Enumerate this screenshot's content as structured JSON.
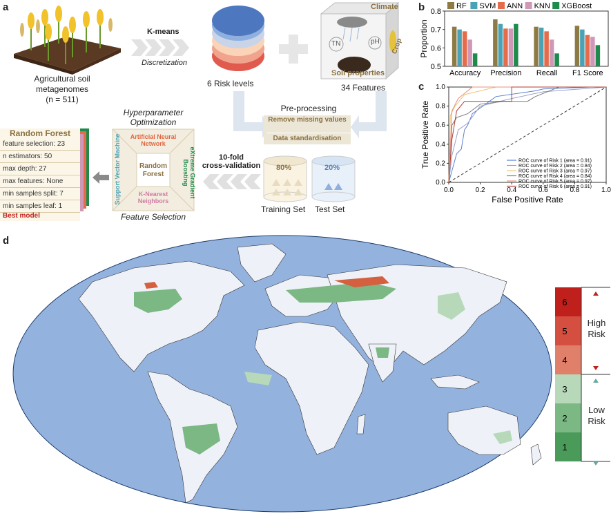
{
  "panels": {
    "a": "a",
    "b": "b",
    "c": "c",
    "d": "d"
  },
  "panel_a": {
    "soil_title": "Agricultural soil metagenomes",
    "soil_n": "(n = 511)",
    "kmeans": "K-means",
    "discretization": "Discretization",
    "risk_levels": "6 Risk levels",
    "cube_climate": "Climate",
    "cube_tn": "TN",
    "cube_ph": "pH",
    "cube_crop": "Crop",
    "cube_soil": "Soil properties",
    "features": "34 Features",
    "preprocessing": "Pre-processing",
    "remove_missing": "Remove missing values",
    "standardisation": "Data standardisation",
    "train_pct": "80%",
    "test_pct": "20%",
    "training_set": "Training Set",
    "test_set": "Test Set",
    "cv_line1": "10-fold",
    "cv_line2": "cross-validation",
    "hyper_line1": "Hyperparameter",
    "hyper_line2": "Optimization",
    "feature_selection": "Feature Selection",
    "frame_top": "Artificial Neural Network",
    "frame_left": "Support Vector Machine",
    "frame_right": "eXtreme Gradient Boosting",
    "frame_bottom": "K-Nearest Neighbors",
    "frame_center": "Random Forest",
    "rf_title": "Random Forest",
    "rf_params": [
      "feature selection: 23",
      "n estimators: 50",
      "max depth: 27",
      "max features: None",
      "min samples split: 7",
      "min samples leaf: 1"
    ],
    "best_model": "Best model"
  },
  "chart_data": [
    {
      "id": "b",
      "type": "bar",
      "ylabel": "Proportion",
      "ylim": [
        0.5,
        0.8
      ],
      "yticks": [
        "0.5",
        "0.6",
        "0.7",
        "0.8"
      ],
      "categories": [
        "Accuracy",
        "Precision",
        "Recall",
        "F1 Score"
      ],
      "series": [
        {
          "name": "RF",
          "color": "#8e7a45",
          "values": [
            0.715,
            0.755,
            0.715,
            0.72
          ]
        },
        {
          "name": "SVM",
          "color": "#4aa3b5",
          "values": [
            0.7,
            0.73,
            0.71,
            0.7
          ]
        },
        {
          "name": "ANN",
          "color": "#e56b4a",
          "values": [
            0.69,
            0.705,
            0.69,
            0.67
          ]
        },
        {
          "name": "KNN",
          "color": "#cf98b7",
          "values": [
            0.645,
            0.705,
            0.645,
            0.66
          ]
        },
        {
          "name": "XGBoost",
          "color": "#1e8a4c",
          "values": [
            0.57,
            0.73,
            0.57,
            0.615
          ]
        }
      ],
      "legend": "top"
    },
    {
      "id": "c",
      "type": "line",
      "xlabel": "False Positive Rate",
      "ylabel": "True Positive Rate",
      "xlim": [
        0,
        1
      ],
      "ylim": [
        0,
        1
      ],
      "xticks": [
        "0.0",
        "0.2",
        "0.4",
        "0.6",
        "0.8",
        "1.0"
      ],
      "yticks": [
        "0.0",
        "0.2",
        "0.4",
        "0.6",
        "0.8",
        "1.0"
      ],
      "legend": "bottom-right",
      "series": [
        {
          "name": "ROC curve of Risk 1 (area = 0.91)",
          "color": "#5b7fd1",
          "points": [
            [
              0,
              0
            ],
            [
              0.05,
              0.3
            ],
            [
              0.08,
              0.35
            ],
            [
              0.1,
              0.55
            ],
            [
              0.12,
              0.6
            ],
            [
              0.15,
              0.72
            ],
            [
              0.3,
              0.9
            ],
            [
              0.55,
              0.96
            ],
            [
              0.6,
              0.98
            ],
            [
              0.9,
              1
            ],
            [
              1,
              1
            ]
          ]
        },
        {
          "name": "ROC curve of Risk 2 (area = 0.84)",
          "color": "#9aa2c9",
          "points": [
            [
              0,
              0
            ],
            [
              0.02,
              0.28
            ],
            [
              0.06,
              0.55
            ],
            [
              0.12,
              0.62
            ],
            [
              0.2,
              0.8
            ],
            [
              0.4,
              0.88
            ],
            [
              0.6,
              0.95
            ],
            [
              1,
              1
            ]
          ]
        },
        {
          "name": "ROC curve of Risk 3 (area = 0.97)",
          "color": "#f2c47a",
          "points": [
            [
              0,
              0
            ],
            [
              0.01,
              0.7
            ],
            [
              0.04,
              0.8
            ],
            [
              0.1,
              0.92
            ],
            [
              0.3,
              1
            ],
            [
              1,
              1
            ]
          ]
        },
        {
          "name": "ROC curve of Risk 4 (area = 0.84)",
          "color": "#7a7a7a",
          "points": [
            [
              0,
              0
            ],
            [
              0.02,
              0.6
            ],
            [
              0.05,
              0.68
            ],
            [
              0.12,
              0.72
            ],
            [
              0.2,
              0.82
            ],
            [
              0.35,
              0.85
            ],
            [
              0.5,
              0.85
            ],
            [
              0.55,
              0.9
            ],
            [
              0.7,
              1
            ],
            [
              1,
              1
            ]
          ]
        },
        {
          "name": "ROC curve of Risk 5 (area = 0.97)",
          "color": "#e8907f",
          "points": [
            [
              0,
              0
            ],
            [
              0.02,
              0.75
            ],
            [
              0.06,
              0.88
            ],
            [
              0.15,
              1
            ],
            [
              1,
              1
            ]
          ]
        },
        {
          "name": "ROC curve of Risk 6 (area = 0.91)",
          "color": "#b53a2e",
          "points": [
            [
              0,
              0
            ],
            [
              0.02,
              0.45
            ],
            [
              0.05,
              0.75
            ],
            [
              0.1,
              0.85
            ],
            [
              0.4,
              0.85
            ],
            [
              0.4,
              1
            ],
            [
              1,
              1
            ]
          ]
        }
      ]
    }
  ],
  "panel_d": {
    "legend_levels": [
      "1",
      "2",
      "3",
      "4",
      "5",
      "6"
    ],
    "legend_colors": [
      "#4a9a5a",
      "#7bb884",
      "#b7d9ba",
      "#e0806a",
      "#d44f40",
      "#c0201c"
    ],
    "high_label": "High Risk",
    "low_label": "Low Risk",
    "ocean_color": "#93b2de",
    "land_color": "#eef2f8"
  }
}
